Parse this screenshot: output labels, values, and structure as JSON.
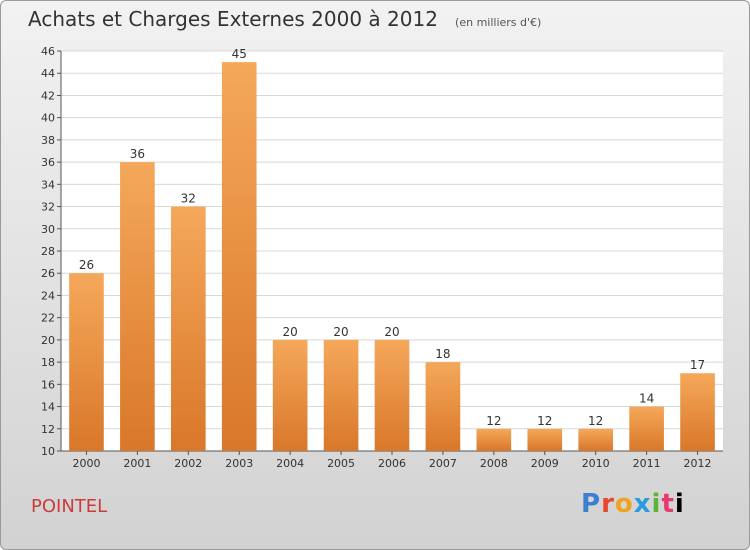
{
  "title": "Achats et Charges Externes 2000 à 2012",
  "unit_label": "(en milliers d'€)",
  "place_name": "POINTEL",
  "logo": "Proxiti",
  "colors": {
    "bar_top": "#f5a85a",
    "bar_bottom": "#d9772a",
    "grid": "#d8d8d8",
    "axis": "#555555",
    "text": "#333333"
  },
  "chart_data": {
    "type": "bar",
    "categories": [
      "2000",
      "2001",
      "2002",
      "2003",
      "2004",
      "2005",
      "2006",
      "2007",
      "2008",
      "2009",
      "2010",
      "2011",
      "2012"
    ],
    "values": [
      26,
      36,
      32,
      45,
      20,
      20,
      20,
      18,
      12,
      12,
      12,
      14,
      17
    ],
    "ylim": [
      10,
      46
    ],
    "yticks": [
      10,
      12,
      14,
      16,
      18,
      20,
      22,
      24,
      26,
      28,
      30,
      32,
      34,
      36,
      38,
      40,
      42,
      44,
      46
    ],
    "grid": true
  }
}
